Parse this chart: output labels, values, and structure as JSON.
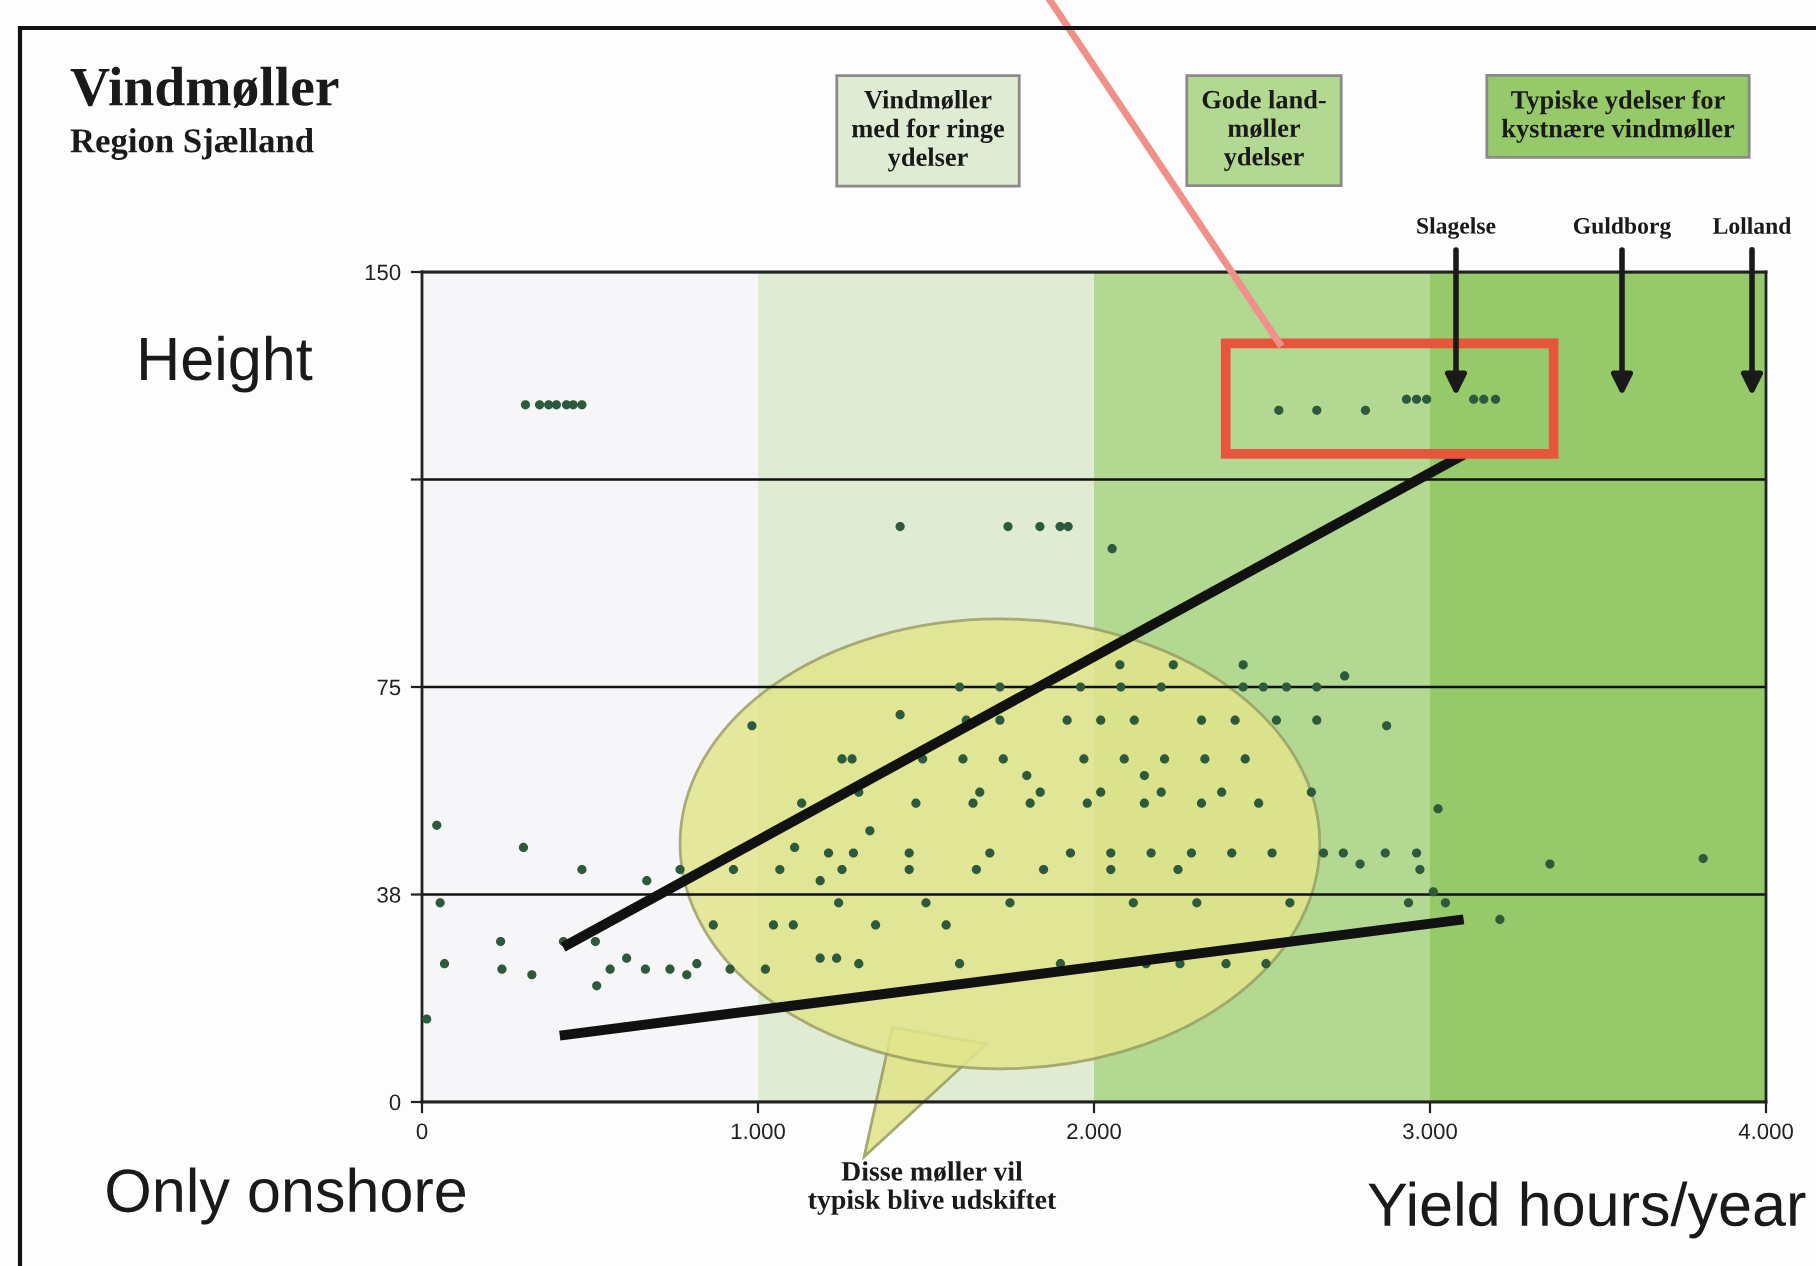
{
  "chart_data": {
    "type": "scatter",
    "title": "Vindmøller",
    "subtitle": "Region Sjælland",
    "xlabel": "Yield hours/year",
    "ylabel": "Height",
    "xlim": [
      0,
      4000
    ],
    "ylim": [
      0,
      150
    ],
    "xticks": [
      0,
      {
        "value": 1000,
        "label": "1.000"
      },
      {
        "value": 2000,
        "label": "2.000"
      },
      {
        "value": 3000,
        "label": "3.000"
      },
      {
        "value": 4000,
        "label": "4.000"
      }
    ],
    "yticks": [
      0,
      {
        "value": 37.5,
        "label": "38"
      },
      75,
      {
        "value": 112.5,
        "label": null
      },
      150
    ],
    "grid": "y",
    "bands": [
      {
        "axis": "x",
        "from": 1000,
        "to": 2000,
        "color": "#dfebd3"
      },
      {
        "axis": "x",
        "from": 2000,
        "to": 3000,
        "color": "#b2d892"
      },
      {
        "axis": "x",
        "from": 3000,
        "to": 4000,
        "color": "#96c96a"
      }
    ],
    "annotations": [
      "Only onshore",
      "Disse møller vil\ntypisk blive udskiftet",
      "Vindmøller\nmed for ringe\nydelser",
      "Gode land-\nmøller\nydelser",
      "Typiske ydelser for\nkystnære vindmøller",
      "Slagelse",
      "Guldborg",
      "Lolland"
    ],
    "series": [
      {
        "color": "#2d5a3d",
        "marker": "circle",
        "x": [
          308,
          350,
          377,
          400,
          430,
          450,
          476,
          1423,
          1744,
          1839,
          1899,
          1923,
          2054,
          2550,
          2663,
          2808,
          2930,
          2960,
          2990,
          3130,
          3160,
          3195,
          44,
          54,
          67,
          14,
          302,
          234,
          238,
          327,
          476,
          421,
          516,
          520,
          560,
          609,
          665,
          669,
          738,
          788,
          818,
          768,
          867,
          917,
          927,
          982,
          1022,
          1046,
          1105,
          1065,
          1109,
          1185,
          1185,
          1234,
          1284,
          1280,
          1333,
          1423,
          2077,
          2236,
          2444,
          2746,
          1600,
          1720,
          1960,
          2080,
          2200,
          2444,
          2504,
          2573,
          2663,
          1620,
          1720,
          1920,
          2020,
          2120,
          2320,
          2420,
          2543,
          2663,
          2871,
          1250,
          1490,
          1610,
          1730,
          1970,
          2090,
          2210,
          2330,
          2450,
          1800,
          2150,
          1300,
          1660,
          1840,
          2020,
          2200,
          2380,
          2647,
          1130,
          1470,
          1640,
          1810,
          1980,
          2150,
          2320,
          2490,
          3024,
          1210,
          1450,
          1690,
          1930,
          2050,
          2170,
          2290,
          2410,
          2530,
          2683,
          2742,
          2867,
          2960,
          2792,
          3357,
          3813,
          1250,
          1450,
          1650,
          1850,
          2050,
          2250,
          2970,
          1240,
          1500,
          1750,
          2117,
          2306,
          2583,
          2936,
          3046,
          3010,
          1350,
          1560,
          3208,
          1300,
          1600,
          1900,
          2155,
          2256,
          2393,
          2512
        ],
        "values": [
          126,
          126,
          126,
          126,
          126,
          126,
          126,
          104,
          104,
          104,
          104,
          104,
          100,
          125,
          125,
          125,
          127,
          127,
          127,
          127,
          127,
          127,
          50,
          36,
          25,
          15,
          46,
          29,
          24,
          23,
          42,
          29,
          29,
          21,
          24,
          26,
          24,
          40,
          24,
          23,
          25,
          42,
          32,
          24,
          42,
          68,
          24,
          32,
          32,
          42,
          46,
          40,
          26,
          26,
          45,
          62,
          49,
          70,
          79,
          79,
          79,
          77,
          75,
          75,
          75,
          75,
          75,
          75,
          75,
          75,
          75,
          69,
          69,
          69,
          69,
          69,
          69,
          69,
          69,
          69,
          68,
          62,
          62,
          62,
          62,
          62,
          62,
          62,
          62,
          62,
          59,
          59,
          56,
          56,
          56,
          56,
          56,
          56,
          56,
          54,
          54,
          54,
          54,
          54,
          54,
          54,
          54,
          53,
          45,
          45,
          45,
          45,
          45,
          45,
          45,
          45,
          45,
          45,
          45,
          45,
          45,
          43,
          43,
          44,
          42,
          42,
          42,
          42,
          42,
          42,
          42,
          36,
          36,
          36,
          36,
          36,
          36,
          36,
          36,
          38,
          32,
          32,
          33,
          25,
          25,
          25,
          25,
          25,
          25,
          25
        ]
      },
      {
        "type": "line",
        "color": "#111111",
        "x": [
          420,
          3100
        ],
        "values": [
          28,
          117
        ]
      },
      {
        "type": "line",
        "color": "#111111",
        "x": [
          410,
          3100
        ],
        "values": [
          12,
          33
        ]
      }
    ]
  }
}
